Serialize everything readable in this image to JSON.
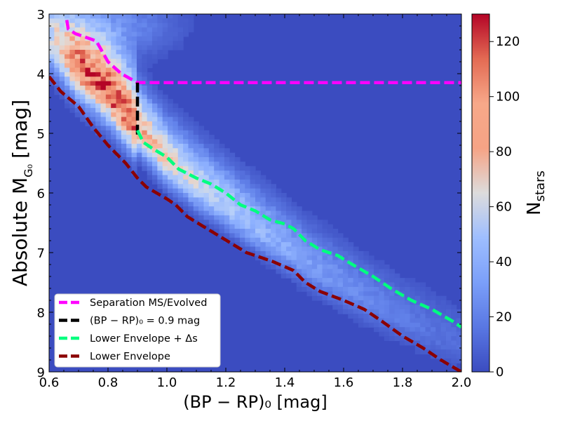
{
  "chart_data": {
    "type": "heatmap",
    "xlabel": "(BP − RP)₀ [mag]",
    "ylabel": "Absolute M",
    "ylabel_subscript": "G₀",
    "ylabel_unit": "[mag]",
    "xlim": [
      0.6,
      2.0
    ],
    "ylim": [
      9,
      3
    ],
    "x_ticks": [
      "0.6",
      "0.8",
      "1.0",
      "1.2",
      "1.4",
      "1.6",
      "1.8",
      "2.0"
    ],
    "y_ticks": [
      "3",
      "4",
      "5",
      "6",
      "7",
      "8",
      "9"
    ],
    "x_tick_values": [
      0.6,
      0.8,
      1.0,
      1.2,
      1.4,
      1.6,
      1.8,
      2.0
    ],
    "y_tick_values": [
      3,
      4,
      5,
      6,
      7,
      8,
      9
    ],
    "colorbar": {
      "label": "N",
      "label_subscript": "stars",
      "range": [
        0,
        130
      ],
      "ticks": [
        "0",
        "20",
        "40",
        "60",
        "80",
        "100",
        "120"
      ],
      "tick_values": [
        0,
        20,
        40,
        60,
        80,
        100,
        120
      ],
      "colormap": "coolwarm"
    },
    "density_ridge": {
      "x": [
        0.62,
        0.7,
        0.8,
        0.9,
        1.0,
        1.1,
        1.2,
        1.3,
        1.4,
        1.5,
        1.6,
        1.7,
        1.8,
        1.9,
        2.0
      ],
      "y": [
        3.5,
        3.9,
        4.3,
        4.9,
        5.45,
        5.85,
        6.2,
        6.55,
        6.9,
        7.25,
        7.55,
        7.85,
        8.1,
        8.35,
        8.55
      ]
    },
    "series": [
      {
        "name": "Separation MS/Evolved",
        "color": "#ff00ff",
        "legend": "Separation MS/Evolved",
        "x": [
          0.66,
          0.665,
          0.69,
          0.76,
          0.8,
          0.845,
          0.9,
          2.0
        ],
        "y": [
          3.1,
          3.25,
          3.33,
          3.45,
          3.8,
          4.0,
          4.15,
          4.15
        ]
      },
      {
        "name": "(BP-RP)0 = 0.9 mag",
        "color": "#000000",
        "legend": "(BP − RP)₀ = 0.9 mag",
        "x": [
          0.9,
          0.9
        ],
        "y": [
          4.15,
          5.05
        ]
      },
      {
        "name": "Lower Envelope + Delta_s",
        "color": "#00ff7f",
        "legend": "Lower Envelope + Δs",
        "x": [
          0.9,
          0.92,
          0.95,
          1.0,
          1.04,
          1.1,
          1.15,
          1.2,
          1.25,
          1.3,
          1.35,
          1.4,
          1.43,
          1.47,
          1.52,
          1.58,
          1.63,
          1.7,
          1.76,
          1.83,
          1.9,
          1.97,
          2.0
        ],
        "y": [
          4.95,
          5.15,
          5.25,
          5.4,
          5.6,
          5.75,
          5.85,
          6.0,
          6.2,
          6.3,
          6.45,
          6.52,
          6.6,
          6.8,
          6.95,
          7.05,
          7.2,
          7.4,
          7.6,
          7.8,
          7.95,
          8.15,
          8.25
        ]
      },
      {
        "name": "Lower Envelope",
        "color": "#8b0000",
        "legend": "Lower Envelope",
        "x": [
          0.6,
          0.64,
          0.7,
          0.75,
          0.8,
          0.86,
          0.9,
          0.93,
          1.0,
          1.03,
          1.07,
          1.12,
          1.17,
          1.22,
          1.27,
          1.3,
          1.36,
          1.43,
          1.47,
          1.52,
          1.6,
          1.67,
          1.73,
          1.8,
          1.87,
          1.93,
          2.0
        ],
        "y": [
          4.05,
          4.3,
          4.55,
          4.9,
          5.2,
          5.5,
          5.75,
          5.9,
          6.1,
          6.2,
          6.4,
          6.55,
          6.7,
          6.85,
          7.0,
          7.05,
          7.15,
          7.3,
          7.5,
          7.65,
          7.8,
          7.95,
          8.15,
          8.4,
          8.6,
          8.8,
          9.0
        ]
      }
    ]
  }
}
